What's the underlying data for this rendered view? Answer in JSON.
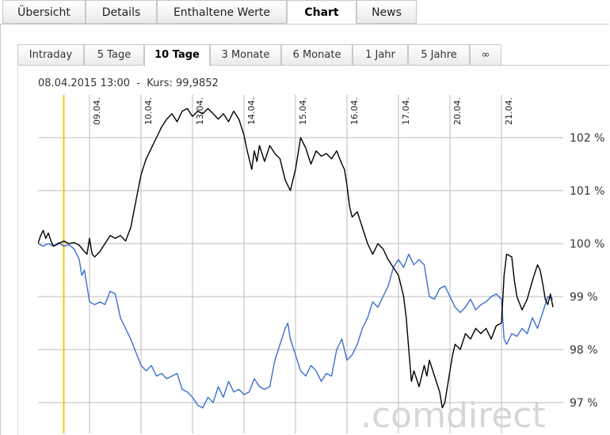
{
  "tabs": [
    {
      "label": "Übersicht",
      "active": false
    },
    {
      "label": "Details",
      "active": false
    },
    {
      "label": "Enthaltene Werte",
      "active": false
    },
    {
      "label": "Chart",
      "active": true
    },
    {
      "label": "News",
      "active": false
    }
  ],
  "range_tabs": [
    {
      "label": "Intraday",
      "active": false
    },
    {
      "label": "5 Tage",
      "active": false
    },
    {
      "label": "10 Tage",
      "active": true
    },
    {
      "label": "3 Monate",
      "active": false
    },
    {
      "label": "6 Monate",
      "active": false
    },
    {
      "label": "1 Jahr",
      "active": false
    },
    {
      "label": "5 Jahre",
      "active": false
    },
    {
      "label": "∞",
      "active": false
    }
  ],
  "info": {
    "date": "08.04.2015 13:00",
    "separator": "-",
    "kurs_label": "Kurs:",
    "kurs_value": "99,9852"
  },
  "watermark": ".comdirect",
  "colors": {
    "series_main": "#000000",
    "series_compare": "#3a6fcf",
    "cursor": "#f5c518",
    "grid": "#bbbbbb"
  },
  "chart_data": {
    "type": "line",
    "x_unit": "trading day (decimal)",
    "x_range": [
      0,
      10.3
    ],
    "y_range": [
      96.8,
      102.5
    ],
    "y_ticks": [
      97,
      98,
      99,
      100,
      101,
      102
    ],
    "y_tick_labels": [
      "97 %",
      "98 %",
      "99 %",
      "100 %",
      "101 %",
      "102 %"
    ],
    "x_tick_positions": [
      1,
      2,
      3,
      4,
      5,
      6,
      7,
      8,
      9
    ],
    "x_tick_labels": [
      "09.04.",
      "10.04.",
      "13.04.",
      "14.04.",
      "15.04.",
      "16.04.",
      "17.04.",
      "20.04.",
      "21.04."
    ],
    "cursor_x": 0.5,
    "grid": true,
    "series": [
      {
        "values": [
          [
            0.0,
            100.0
          ],
          [
            0.05,
            100.15
          ],
          [
            0.1,
            100.25
          ],
          [
            0.15,
            100.1
          ],
          [
            0.2,
            100.2
          ],
          [
            0.25,
            100.05
          ],
          [
            0.3,
            99.95
          ],
          [
            0.4,
            100.0
          ],
          [
            0.5,
            100.05
          ],
          [
            0.6,
            100.0
          ],
          [
            0.7,
            100.02
          ],
          [
            0.8,
            99.97
          ],
          [
            0.9,
            99.85
          ],
          [
            0.95,
            99.8
          ],
          [
            1.0,
            100.1
          ],
          [
            1.05,
            99.8
          ],
          [
            1.1,
            99.75
          ],
          [
            1.2,
            99.85
          ],
          [
            1.3,
            100.0
          ],
          [
            1.4,
            100.15
          ],
          [
            1.5,
            100.1
          ],
          [
            1.6,
            100.15
          ],
          [
            1.7,
            100.05
          ],
          [
            1.8,
            100.3
          ],
          [
            1.9,
            100.8
          ],
          [
            2.0,
            101.3
          ],
          [
            2.1,
            101.6
          ],
          [
            2.2,
            101.8
          ],
          [
            2.3,
            102.0
          ],
          [
            2.4,
            102.2
          ],
          [
            2.5,
            102.35
          ],
          [
            2.6,
            102.45
          ],
          [
            2.7,
            102.3
          ],
          [
            2.8,
            102.5
          ],
          [
            2.9,
            102.55
          ],
          [
            3.0,
            102.4
          ],
          [
            3.1,
            102.5
          ],
          [
            3.2,
            102.45
          ],
          [
            3.3,
            102.55
          ],
          [
            3.4,
            102.45
          ],
          [
            3.5,
            102.35
          ],
          [
            3.6,
            102.45
          ],
          [
            3.7,
            102.3
          ],
          [
            3.8,
            102.5
          ],
          [
            3.9,
            102.35
          ],
          [
            4.0,
            102.05
          ],
          [
            4.05,
            101.8
          ],
          [
            4.1,
            101.6
          ],
          [
            4.15,
            101.4
          ],
          [
            4.2,
            101.75
          ],
          [
            4.25,
            101.55
          ],
          [
            4.3,
            101.85
          ],
          [
            4.4,
            101.55
          ],
          [
            4.5,
            101.85
          ],
          [
            4.6,
            101.7
          ],
          [
            4.7,
            101.6
          ],
          [
            4.8,
            101.2
          ],
          [
            4.9,
            101.0
          ],
          [
            5.0,
            101.4
          ],
          [
            5.1,
            102.0
          ],
          [
            5.2,
            101.8
          ],
          [
            5.3,
            101.5
          ],
          [
            5.4,
            101.75
          ],
          [
            5.5,
            101.65
          ],
          [
            5.6,
            101.7
          ],
          [
            5.7,
            101.6
          ],
          [
            5.8,
            101.75
          ],
          [
            5.9,
            101.5
          ],
          [
            5.95,
            101.4
          ],
          [
            6.0,
            101.1
          ],
          [
            6.05,
            100.7
          ],
          [
            6.1,
            100.5
          ],
          [
            6.2,
            100.6
          ],
          [
            6.3,
            100.3
          ],
          [
            6.4,
            100.0
          ],
          [
            6.5,
            99.8
          ],
          [
            6.6,
            100.0
          ],
          [
            6.7,
            99.9
          ],
          [
            6.8,
            99.7
          ],
          [
            6.9,
            99.55
          ],
          [
            7.0,
            99.4
          ],
          [
            7.05,
            99.2
          ],
          [
            7.1,
            99.0
          ],
          [
            7.15,
            98.6
          ],
          [
            7.2,
            98.0
          ],
          [
            7.25,
            97.4
          ],
          [
            7.3,
            97.6
          ],
          [
            7.4,
            97.3
          ],
          [
            7.5,
            97.7
          ],
          [
            7.55,
            97.5
          ],
          [
            7.6,
            97.8
          ],
          [
            7.7,
            97.5
          ],
          [
            7.8,
            97.2
          ],
          [
            7.85,
            96.9
          ],
          [
            7.9,
            97.0
          ],
          [
            8.0,
            97.6
          ],
          [
            8.05,
            97.9
          ],
          [
            8.1,
            98.1
          ],
          [
            8.2,
            98.0
          ],
          [
            8.3,
            98.3
          ],
          [
            8.4,
            98.2
          ],
          [
            8.5,
            98.4
          ],
          [
            8.6,
            98.3
          ],
          [
            8.7,
            98.4
          ],
          [
            8.8,
            98.2
          ],
          [
            8.9,
            98.45
          ],
          [
            9.0,
            98.5
          ],
          [
            9.05,
            99.4
          ],
          [
            9.1,
            99.8
          ],
          [
            9.2,
            99.75
          ],
          [
            9.25,
            99.3
          ],
          [
            9.3,
            99.0
          ],
          [
            9.4,
            98.75
          ],
          [
            9.5,
            98.95
          ],
          [
            9.6,
            99.3
          ],
          [
            9.7,
            99.6
          ],
          [
            9.75,
            99.5
          ],
          [
            9.8,
            99.25
          ],
          [
            9.85,
            98.95
          ],
          [
            9.9,
            98.85
          ],
          [
            9.95,
            99.05
          ],
          [
            10.0,
            98.8
          ]
        ]
      },
      {
        "values": [
          [
            0.0,
            100.0
          ],
          [
            0.1,
            99.95
          ],
          [
            0.2,
            100.0
          ],
          [
            0.3,
            99.95
          ],
          [
            0.4,
            100.02
          ],
          [
            0.5,
            99.95
          ],
          [
            0.6,
            99.98
          ],
          [
            0.7,
            99.9
          ],
          [
            0.8,
            99.7
          ],
          [
            0.85,
            99.4
          ],
          [
            0.9,
            99.5
          ],
          [
            0.95,
            99.2
          ],
          [
            1.0,
            98.9
          ],
          [
            1.1,
            98.85
          ],
          [
            1.2,
            98.9
          ],
          [
            1.3,
            98.85
          ],
          [
            1.4,
            99.1
          ],
          [
            1.5,
            99.05
          ],
          [
            1.6,
            98.6
          ],
          [
            1.7,
            98.4
          ],
          [
            1.8,
            98.2
          ],
          [
            1.9,
            97.95
          ],
          [
            2.0,
            97.7
          ],
          [
            2.1,
            97.6
          ],
          [
            2.2,
            97.7
          ],
          [
            2.3,
            97.5
          ],
          [
            2.4,
            97.55
          ],
          [
            2.5,
            97.45
          ],
          [
            2.6,
            97.5
          ],
          [
            2.7,
            97.55
          ],
          [
            2.8,
            97.25
          ],
          [
            2.9,
            97.2
          ],
          [
            3.0,
            97.1
          ],
          [
            3.1,
            96.95
          ],
          [
            3.2,
            96.9
          ],
          [
            3.3,
            97.1
          ],
          [
            3.4,
            97.0
          ],
          [
            3.5,
            97.3
          ],
          [
            3.6,
            97.1
          ],
          [
            3.7,
            97.4
          ],
          [
            3.8,
            97.2
          ],
          [
            3.9,
            97.25
          ],
          [
            4.0,
            97.15
          ],
          [
            4.1,
            97.2
          ],
          [
            4.2,
            97.45
          ],
          [
            4.3,
            97.3
          ],
          [
            4.4,
            97.25
          ],
          [
            4.5,
            97.3
          ],
          [
            4.6,
            97.8
          ],
          [
            4.7,
            98.1
          ],
          [
            4.8,
            98.4
          ],
          [
            4.85,
            98.5
          ],
          [
            4.9,
            98.2
          ],
          [
            5.0,
            97.9
          ],
          [
            5.1,
            97.6
          ],
          [
            5.2,
            97.5
          ],
          [
            5.3,
            97.7
          ],
          [
            5.4,
            97.6
          ],
          [
            5.5,
            97.4
          ],
          [
            5.6,
            97.55
          ],
          [
            5.7,
            97.5
          ],
          [
            5.8,
            98.0
          ],
          [
            5.9,
            98.2
          ],
          [
            6.0,
            97.8
          ],
          [
            6.1,
            97.9
          ],
          [
            6.2,
            98.1
          ],
          [
            6.3,
            98.4
          ],
          [
            6.4,
            98.6
          ],
          [
            6.5,
            98.9
          ],
          [
            6.6,
            98.8
          ],
          [
            6.7,
            99.0
          ],
          [
            6.8,
            99.2
          ],
          [
            6.9,
            99.55
          ],
          [
            7.0,
            99.7
          ],
          [
            7.1,
            99.55
          ],
          [
            7.2,
            99.8
          ],
          [
            7.3,
            99.6
          ],
          [
            7.4,
            99.7
          ],
          [
            7.5,
            99.6
          ],
          [
            7.6,
            99.0
          ],
          [
            7.7,
            98.95
          ],
          [
            7.8,
            99.15
          ],
          [
            7.9,
            99.2
          ],
          [
            8.0,
            99.0
          ],
          [
            8.1,
            98.8
          ],
          [
            8.2,
            98.7
          ],
          [
            8.3,
            98.8
          ],
          [
            8.4,
            98.95
          ],
          [
            8.5,
            98.75
          ],
          [
            8.6,
            98.85
          ],
          [
            8.7,
            98.9
          ],
          [
            8.8,
            99.0
          ],
          [
            8.9,
            99.05
          ],
          [
            9.0,
            98.95
          ],
          [
            9.05,
            98.2
          ],
          [
            9.1,
            98.1
          ],
          [
            9.2,
            98.3
          ],
          [
            9.3,
            98.25
          ],
          [
            9.4,
            98.4
          ],
          [
            9.5,
            98.3
          ],
          [
            9.6,
            98.6
          ],
          [
            9.7,
            98.4
          ],
          [
            9.8,
            98.7
          ],
          [
            9.9,
            99.0
          ],
          [
            10.0,
            98.95
          ]
        ]
      }
    ]
  }
}
